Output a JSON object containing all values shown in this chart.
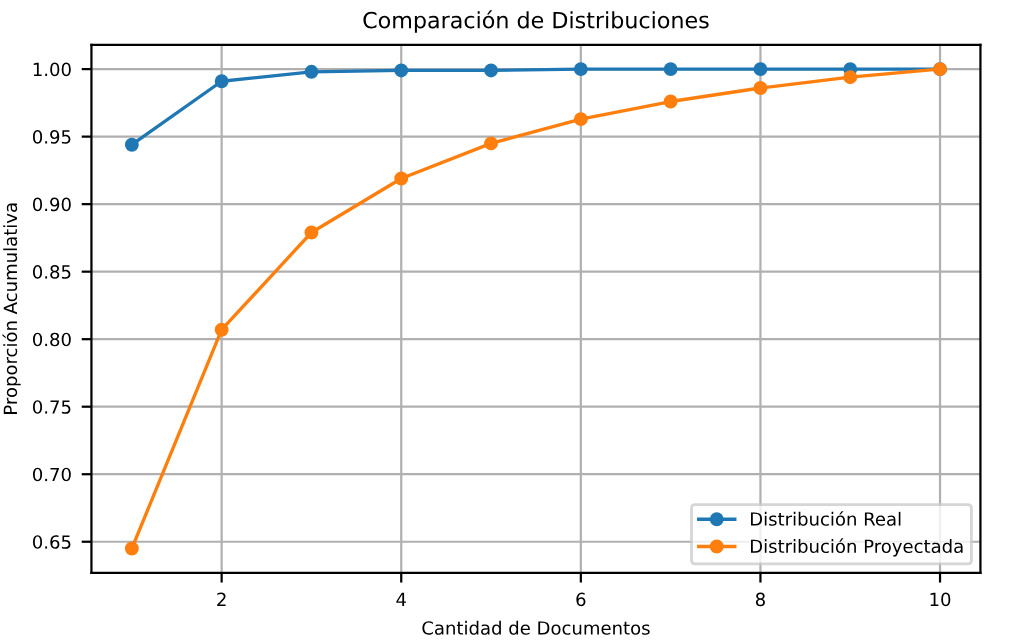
{
  "chart_data": {
    "type": "line",
    "title": "Comparación de Distribuciones",
    "xlabel": "Cantidad de Documentos",
    "ylabel": "Proporción Acumulativa",
    "x": [
      1,
      2,
      3,
      4,
      5,
      6,
      7,
      8,
      9,
      10
    ],
    "series": [
      {
        "name": "Distribución Real",
        "color": "#1f77b4",
        "values": [
          0.944,
          0.991,
          0.998,
          0.999,
          0.999,
          1.0,
          1.0,
          1.0,
          1.0,
          1.0
        ]
      },
      {
        "name": "Distribución Proyectada",
        "color": "#ff7f0e",
        "values": [
          0.645,
          0.807,
          0.879,
          0.919,
          0.945,
          0.963,
          0.976,
          0.986,
          0.994,
          1.0
        ]
      }
    ],
    "xlim": [
      0.55,
      10.45
    ],
    "ylim": [
      0.627,
      1.018
    ],
    "xticks": [
      2,
      4,
      6,
      8,
      10
    ],
    "yticks": [
      0.65,
      {
        "value": 0.7,
        "label": "0.70"
      },
      0.75,
      {
        "value": 0.8,
        "label": "0.80"
      },
      0.85,
      {
        "value": 0.9,
        "label": "0.90"
      },
      0.95,
      {
        "value": 1,
        "label": "1.00"
      }
    ],
    "grid": true,
    "legend": "bottom right",
    "marker": "circle",
    "line_style": "solid"
  }
}
